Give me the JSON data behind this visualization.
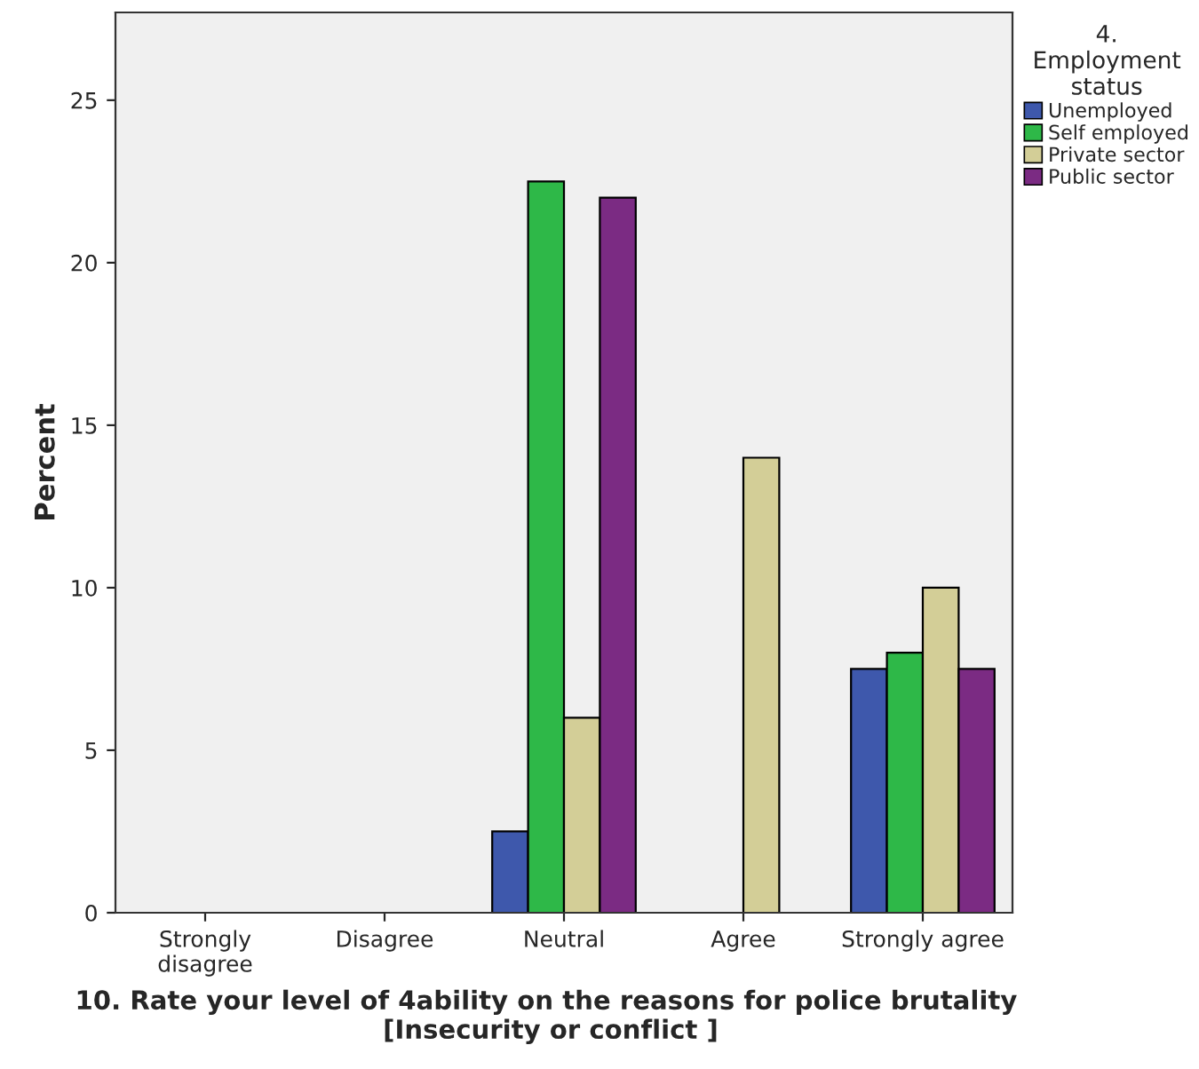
{
  "chart_data": {
    "type": "bar",
    "xlabel": "10. Rate your level of 4ability on the reasons for police brutality  [Insecurity or conflict ]",
    "ylabel": "Percent",
    "legend_title": "4. Employment status",
    "categories": [
      "Strongly disagree",
      "Disagree",
      "Neutral",
      "Agree",
      "Strongly agree"
    ],
    "series": [
      {
        "name": "Unemployed",
        "color": "#3e58ac",
        "values": [
          0,
          0,
          2.5,
          0,
          7.5
        ]
      },
      {
        "name": "Self employed",
        "color": "#2eb848",
        "values": [
          0,
          0,
          22.5,
          0,
          8
        ]
      },
      {
        "name": "Private sector",
        "color": "#d3ce97",
        "values": [
          0,
          0,
          6,
          14,
          10
        ]
      },
      {
        "name": "Public sector",
        "color": "#7b2b83",
        "values": [
          0,
          0,
          22,
          0,
          7.5
        ]
      }
    ],
    "ylim": [
      0,
      27.7
    ],
    "yticks": [
      0,
      5,
      10,
      15,
      20,
      25
    ],
    "grid": false,
    "legend": "right"
  }
}
